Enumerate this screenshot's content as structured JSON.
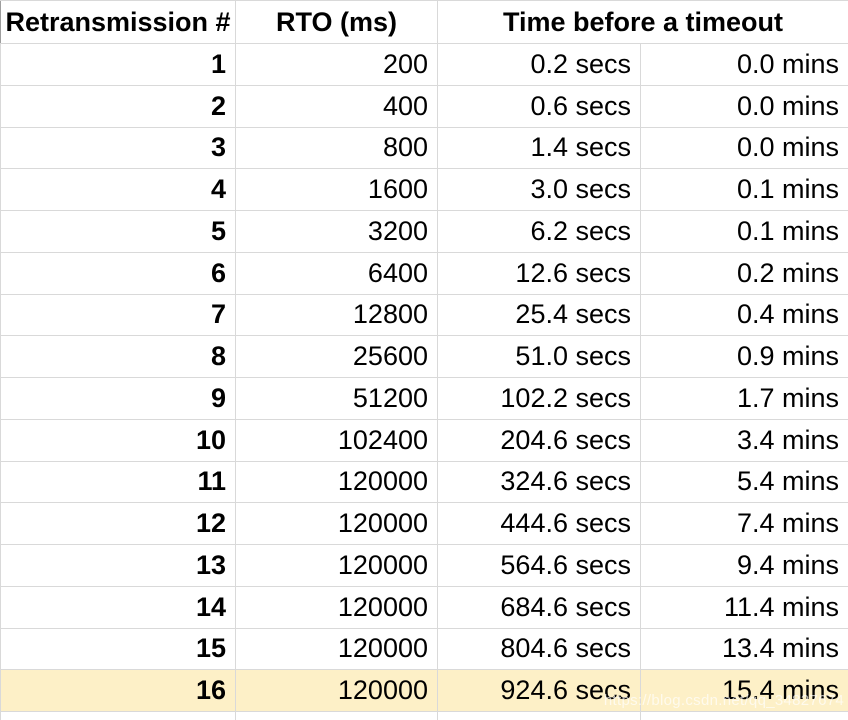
{
  "table": {
    "col_headers": {
      "retransmission": "Retransmission #",
      "rto": "RTO (ms)",
      "time_before_timeout": "Time before a timeout"
    },
    "rows": [
      {
        "num": "1",
        "rto": "200",
        "secs": "0.2 secs",
        "mins": "0.0 mins"
      },
      {
        "num": "2",
        "rto": "400",
        "secs": "0.6 secs",
        "mins": "0.0 mins"
      },
      {
        "num": "3",
        "rto": "800",
        "secs": "1.4 secs",
        "mins": "0.0 mins"
      },
      {
        "num": "4",
        "rto": "1600",
        "secs": "3.0 secs",
        "mins": "0.1 mins"
      },
      {
        "num": "5",
        "rto": "3200",
        "secs": "6.2 secs",
        "mins": "0.1 mins"
      },
      {
        "num": "6",
        "rto": "6400",
        "secs": "12.6 secs",
        "mins": "0.2 mins"
      },
      {
        "num": "7",
        "rto": "12800",
        "secs": "25.4 secs",
        "mins": "0.4 mins"
      },
      {
        "num": "8",
        "rto": "25600",
        "secs": "51.0 secs",
        "mins": "0.9 mins"
      },
      {
        "num": "9",
        "rto": "51200",
        "secs": "102.2 secs",
        "mins": "1.7 mins"
      },
      {
        "num": "10",
        "rto": "102400",
        "secs": "204.6 secs",
        "mins": "3.4 mins"
      },
      {
        "num": "11",
        "rto": "120000",
        "secs": "324.6 secs",
        "mins": "5.4 mins"
      },
      {
        "num": "12",
        "rto": "120000",
        "secs": "444.6 secs",
        "mins": "7.4 mins"
      },
      {
        "num": "13",
        "rto": "120000",
        "secs": "564.6 secs",
        "mins": "9.4 mins"
      },
      {
        "num": "14",
        "rto": "120000",
        "secs": "684.6 secs",
        "mins": "11.4 mins"
      },
      {
        "num": "15",
        "rto": "120000",
        "secs": "804.6 secs",
        "mins": "13.4 mins"
      },
      {
        "num": "16",
        "rto": "120000",
        "secs": "924.6 secs",
        "mins": "15.4 mins"
      }
    ],
    "highlighted_row_num": "16"
  },
  "colors": {
    "highlight": "#fdf0c7"
  },
  "watermark": {
    "text": "https://blog.csdn.net/qq_34827674"
  }
}
